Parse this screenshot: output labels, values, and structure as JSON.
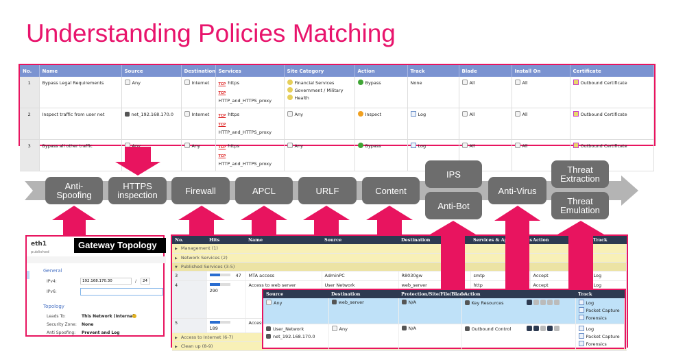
{
  "title": "Understanding Policies Matching",
  "https_policy": {
    "columns": [
      "No.",
      "Name",
      "Source",
      "Destination",
      "Services",
      "Site Category",
      "Action",
      "Track",
      "Blade",
      "Install On",
      "Certificate"
    ],
    "rows": [
      {
        "no": "1",
        "name": "Bypass Legal Requirements",
        "source": "Any",
        "destination": "Internet",
        "services": [
          "https",
          "HTTP_and_HTTPS_proxy"
        ],
        "site_category": [
          "Financial Services",
          "Government / Military",
          "Health"
        ],
        "action": "Bypass",
        "track": "None",
        "blade": "All",
        "install_on": "All",
        "certificate": "Outbound Certificate"
      },
      {
        "no": "2",
        "name": "Inspect traffic from user net",
        "source": "net_192.168.170.0",
        "destination": "Internet",
        "services": [
          "https",
          "HTTP_and_HTTPS_proxy"
        ],
        "site_category": [
          "Any"
        ],
        "action": "Inspect",
        "track": "Log",
        "blade": "All",
        "install_on": "All",
        "certificate": "Outbound Certificate"
      },
      {
        "no": "3",
        "name": "Bypass all other traffic",
        "source": "Any",
        "destination": "Any",
        "services": [
          "https",
          "HTTP_and_HTTPS_proxy"
        ],
        "site_category": [
          "Any"
        ],
        "action": "Bypass",
        "track": "Log",
        "blade": "All",
        "install_on": "All",
        "certificate": "Outbound Certificate"
      }
    ],
    "service_icon": "TCP"
  },
  "blades": [
    "Anti-Spoofing",
    "HTTPS inspection",
    "Firewall",
    "APCL",
    "URLF",
    "Content",
    "IPS",
    "Anti-Bot",
    "Anti-Virus",
    "Threat Extraction",
    "Threat Emulation"
  ],
  "topology": {
    "interface": "eth1",
    "status": "published",
    "badge": "Gateway Topology",
    "general": "General",
    "ipv4_label": "IPv4:",
    "ipv4": "192.168.170.30",
    "mask": "24",
    "ipv6_label": "IPv6:",
    "ipv6": "",
    "topology": "Topology",
    "leads_to_label": "Leads To:",
    "leads_to": "This Network (Internal)",
    "zone_label": "Security Zone:",
    "zone": "None",
    "spoof_label": "Anti Spoofing:",
    "spoof": "Prevent and Log"
  },
  "rulebase": {
    "columns": [
      "No.",
      "Hits",
      "Name",
      "Source",
      "Destination",
      "Services & Applications",
      "Action",
      "Track"
    ],
    "sections": {
      "management": "Management (1)",
      "network": "Network Services (2)",
      "published": "Published Services (3-5)",
      "internet": "Access to Internet (6-7)",
      "cleanup": "Clean up (8-9)"
    },
    "rows": [
      {
        "no": "3",
        "hits": 47,
        "hits_fill": 0.5,
        "name": "MTA access",
        "source": "AdminPC",
        "destination": "R8030gw",
        "service": "smtp",
        "action": "Accept",
        "track": "Log"
      },
      {
        "no": "4",
        "hits": 290,
        "hits_fill": 0.5,
        "name": "Access to web server",
        "source": "User Network",
        "destination": "web_server",
        "service": "http",
        "action": "Accept",
        "track": "Log"
      },
      {
        "no": "5",
        "hits": 189,
        "hits_fill": 0.5,
        "name": "Access",
        "source": "",
        "destination": "",
        "service": "",
        "action": "",
        "track": ""
      }
    ]
  },
  "threat_policy": {
    "columns": [
      "Source",
      "Destination",
      "Protection/Site/File/Blade",
      "Action",
      "Track"
    ],
    "rows": [
      {
        "source": [
          "Any"
        ],
        "destination": "web_server",
        "protection": "N/A",
        "action": "Key Resources",
        "track": [
          "Log",
          "Packet Capture",
          "Forensics"
        ]
      },
      {
        "source": [
          "User_Network",
          "net_192.168.170.0"
        ],
        "destination": "Any",
        "protection": "N/A",
        "action": "Outbound Control",
        "track": [
          "Log",
          "Packet Capture",
          "Forensics"
        ]
      }
    ]
  },
  "colors": {
    "accent": "#e8146c",
    "header_blue": "#7b93d1",
    "blade_gray": "#6d6d6d",
    "dark_header": "#2d3a51"
  }
}
